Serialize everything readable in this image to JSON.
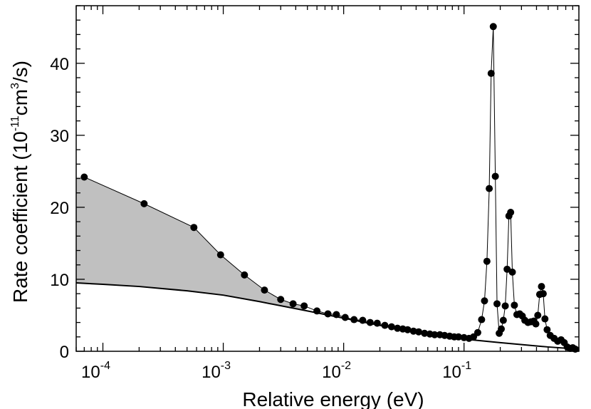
{
  "chart_data": {
    "type": "line",
    "x_scale": "log",
    "xlabel": "Relative energy (eV)",
    "ylabel_parts": [
      "Rate coefficient (10",
      "-11",
      "cm",
      "3",
      "/s)"
    ],
    "xlim": [
      6e-05,
      0.9
    ],
    "ylim": [
      0,
      48
    ],
    "x_ticks": [
      {
        "value": 0.0001,
        "base": "10",
        "exp": "-4"
      },
      {
        "value": 0.001,
        "base": "10",
        "exp": "-3"
      },
      {
        "value": 0.01,
        "base": "10",
        "exp": "-2"
      },
      {
        "value": 0.1,
        "base": "10",
        "exp": "-1"
      }
    ],
    "y_ticks": [
      0,
      10,
      20,
      30,
      40
    ],
    "grid": false,
    "colors": {
      "line": "#000000",
      "marker": "#000000",
      "fill": "#c0c0c0"
    },
    "series": [
      {
        "kind": "markers-line",
        "points": [
          [
            7e-05,
            24.2
          ],
          [
            0.00022,
            20.5
          ],
          [
            0.00057,
            17.2
          ],
          [
            0.00095,
            13.4
          ],
          [
            0.0015,
            10.6
          ],
          [
            0.0022,
            8.5
          ],
          [
            0.003,
            7.2
          ],
          [
            0.0038,
            6.6
          ],
          [
            0.0047,
            6.3
          ],
          [
            0.006,
            5.6
          ],
          [
            0.0074,
            5.2
          ],
          [
            0.0087,
            5.1
          ],
          [
            0.0103,
            4.7
          ],
          [
            0.0122,
            4.4
          ],
          [
            0.0144,
            4.3
          ],
          [
            0.0166,
            4.0
          ],
          [
            0.019,
            3.9
          ],
          [
            0.022,
            3.6
          ],
          [
            0.025,
            3.4
          ],
          [
            0.028,
            3.2
          ],
          [
            0.031,
            3.1
          ],
          [
            0.034,
            3.0
          ],
          [
            0.038,
            2.8
          ],
          [
            0.042,
            2.7
          ],
          [
            0.047,
            2.5
          ],
          [
            0.052,
            2.4
          ],
          [
            0.057,
            2.3
          ],
          [
            0.063,
            2.3
          ],
          [
            0.069,
            2.2
          ],
          [
            0.076,
            2.1
          ],
          [
            0.083,
            2.0
          ],
          [
            0.09,
            2.0
          ],
          [
            0.1,
            1.9
          ],
          [
            0.11,
            1.8
          ],
          [
            0.12,
            2.0
          ],
          [
            0.13,
            2.6
          ],
          [
            0.14,
            4.4
          ],
          [
            0.148,
            7.0
          ],
          [
            0.155,
            12.5
          ],
          [
            0.162,
            22.6
          ],
          [
            0.168,
            38.6
          ],
          [
            0.175,
            45.1
          ],
          [
            0.182,
            24.3
          ],
          [
            0.188,
            6.6
          ],
          [
            0.196,
            2.5
          ],
          [
            0.204,
            3.1
          ],
          [
            0.212,
            4.3
          ],
          [
            0.22,
            6.3
          ],
          [
            0.228,
            11.4
          ],
          [
            0.236,
            18.8
          ],
          [
            0.244,
            19.3
          ],
          [
            0.252,
            11.0
          ],
          [
            0.262,
            6.4
          ],
          [
            0.275,
            5.1
          ],
          [
            0.29,
            5.2
          ],
          [
            0.305,
            4.9
          ],
          [
            0.32,
            4.3
          ],
          [
            0.34,
            4.0
          ],
          [
            0.36,
            4.1
          ],
          [
            0.38,
            4.2
          ],
          [
            0.395,
            3.8
          ],
          [
            0.41,
            5.0
          ],
          [
            0.425,
            7.9
          ],
          [
            0.44,
            9.0
          ],
          [
            0.455,
            8.0
          ],
          [
            0.47,
            4.5
          ],
          [
            0.49,
            3.0
          ],
          [
            0.52,
            2.2
          ],
          [
            0.56,
            1.8
          ],
          [
            0.6,
            1.4
          ],
          [
            0.64,
            1.6
          ],
          [
            0.68,
            1.2
          ],
          [
            0.72,
            0.6
          ],
          [
            0.76,
            0.4
          ],
          [
            0.8,
            0.5
          ],
          [
            0.84,
            0.3
          ]
        ]
      },
      {
        "kind": "smooth-line",
        "points": [
          [
            6e-05,
            9.5
          ],
          [
            0.0001,
            9.3
          ],
          [
            0.0002,
            9.0
          ],
          [
            0.0005,
            8.4
          ],
          [
            0.001,
            7.8
          ],
          [
            0.002,
            6.9
          ],
          [
            0.005,
            5.6
          ],
          [
            0.01,
            4.6
          ],
          [
            0.02,
            3.6
          ],
          [
            0.05,
            2.4
          ],
          [
            0.1,
            1.7
          ],
          [
            0.2,
            1.2
          ],
          [
            0.5,
            0.6
          ],
          [
            0.9,
            0.3
          ]
        ]
      }
    ],
    "shaded_region": {
      "between": [
        0,
        1
      ],
      "x_range": [
        6e-05,
        0.005
      ]
    }
  }
}
